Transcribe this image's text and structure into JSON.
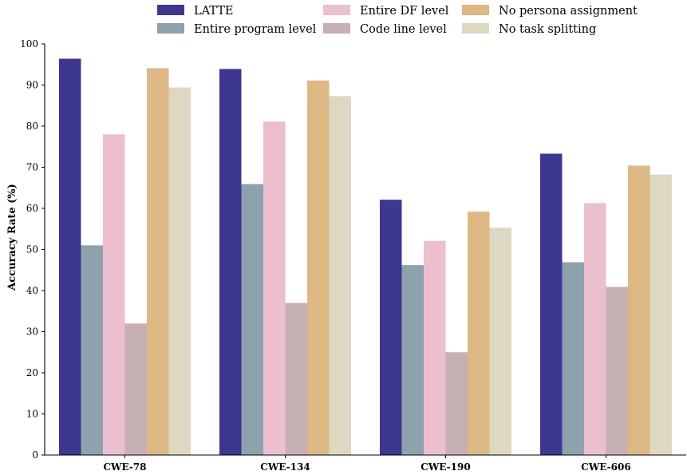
{
  "chart_data": {
    "type": "bar",
    "ylabel": "Accuracy Rate (%)",
    "xlabel": "",
    "ylim": [
      0,
      100
    ],
    "yticks": [
      0,
      10,
      20,
      30,
      40,
      50,
      60,
      70,
      80,
      90,
      100
    ],
    "categories": [
      "CWE-78",
      "CWE-134",
      "CWE-190",
      "CWE-606"
    ],
    "legend_position": "top-center",
    "legend_columns": 3,
    "grid": false,
    "series": [
      {
        "name": "LATTE",
        "color": "#3d3790",
        "values": [
          96.4,
          93.9,
          62.1,
          73.3
        ]
      },
      {
        "name": "Entire program level",
        "color": "#8da2ad",
        "values": [
          51.0,
          65.9,
          46.2,
          46.9
        ]
      },
      {
        "name": "Entire DF level",
        "color": "#ebbfcd",
        "values": [
          78.0,
          81.1,
          52.1,
          61.3
        ]
      },
      {
        "name": "Code line level",
        "color": "#c6b0b2",
        "values": [
          32.0,
          37.0,
          25.0,
          40.9
        ]
      },
      {
        "name": "No persona assignment",
        "color": "#deb884",
        "values": [
          94.1,
          91.1,
          59.2,
          70.4
        ]
      },
      {
        "name": "No task splitting",
        "color": "#ddd8c1",
        "values": [
          89.4,
          87.3,
          55.3,
          68.2
        ]
      }
    ]
  }
}
